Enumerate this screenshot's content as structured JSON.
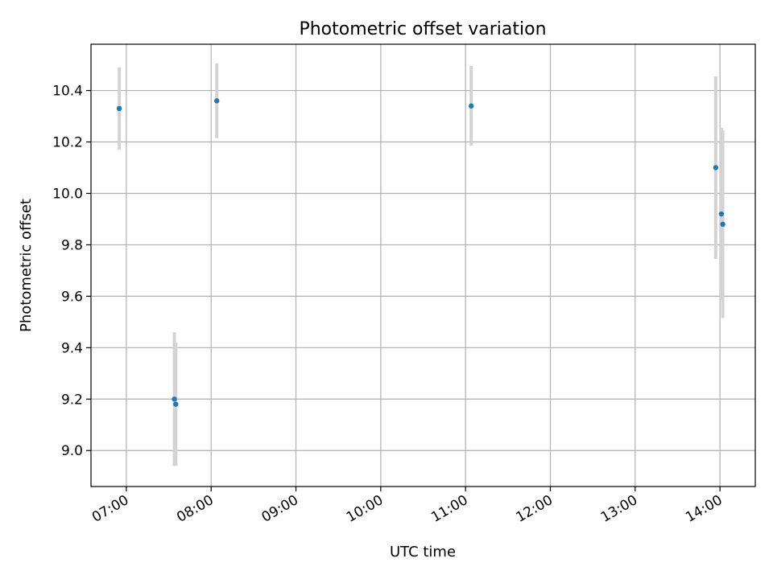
{
  "chart_data": {
    "type": "scatter",
    "title": "Photometric offset variation",
    "xlabel": "UTC time",
    "ylabel": "Photometric offset",
    "x_axis_type": "time",
    "xlim": [
      "06:35",
      "14:25"
    ],
    "ylim": [
      8.86,
      10.58
    ],
    "x_ticks": [
      "07:00",
      "08:00",
      "09:00",
      "10:00",
      "11:00",
      "12:00",
      "13:00",
      "14:00"
    ],
    "y_ticks": [
      9.0,
      9.2,
      9.4,
      9.6,
      9.8,
      10.0,
      10.2,
      10.4
    ],
    "y_tick_labels": [
      "9.0",
      "9.2",
      "9.4",
      "9.6",
      "9.8",
      "10.0",
      "10.2",
      "10.4"
    ],
    "grid": true,
    "legend": false,
    "point_color": "#1f77b4",
    "errorbar_color": "#d3d3d3",
    "points": [
      {
        "x": "06:55",
        "y": 10.33,
        "yerr": 0.16
      },
      {
        "x": "07:34",
        "y": 9.2,
        "yerr": 0.26
      },
      {
        "x": "07:35",
        "y": 9.18,
        "yerr": 0.24
      },
      {
        "x": "08:04",
        "y": 10.36,
        "yerr": 0.145
      },
      {
        "x": "11:04",
        "y": 10.34,
        "yerr": 0.155
      },
      {
        "x": "13:57",
        "y": 10.1,
        "yerr": 0.355
      },
      {
        "x": "14:01",
        "y": 9.92,
        "yerr": 0.335
      },
      {
        "x": "14:02",
        "y": 9.88,
        "yerr": 0.365
      }
    ]
  }
}
